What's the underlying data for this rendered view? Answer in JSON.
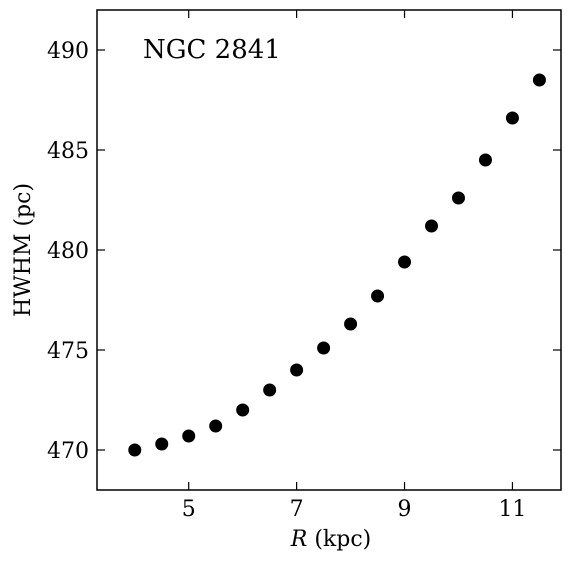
{
  "chart_data": {
    "type": "scatter",
    "title": "",
    "annotation": "NGC 2841",
    "xlabel": {
      "italic": "R",
      "rest": " (kpc)"
    },
    "ylabel": "HWHM (pc)",
    "xlim": [
      3.3,
      11.9
    ],
    "ylim": [
      468.0,
      492.0
    ],
    "x_ticks": [
      5,
      7,
      9,
      11
    ],
    "y_ticks": [
      470,
      475,
      480,
      485,
      490
    ],
    "grid": false,
    "legend": "none",
    "marker_color": "#000000",
    "points": [
      {
        "x": 4.0,
        "y": 470.0
      },
      {
        "x": 4.5,
        "y": 470.3
      },
      {
        "x": 5.0,
        "y": 470.7
      },
      {
        "x": 5.5,
        "y": 471.2
      },
      {
        "x": 6.0,
        "y": 472.0
      },
      {
        "x": 6.5,
        "y": 473.0
      },
      {
        "x": 7.0,
        "y": 474.0
      },
      {
        "x": 7.5,
        "y": 475.1
      },
      {
        "x": 8.0,
        "y": 476.3
      },
      {
        "x": 8.5,
        "y": 477.7
      },
      {
        "x": 9.0,
        "y": 479.4
      },
      {
        "x": 9.5,
        "y": 481.2
      },
      {
        "x": 10.0,
        "y": 482.6
      },
      {
        "x": 10.5,
        "y": 484.5
      },
      {
        "x": 11.0,
        "y": 486.6
      },
      {
        "x": 11.5,
        "y": 488.5
      }
    ]
  }
}
